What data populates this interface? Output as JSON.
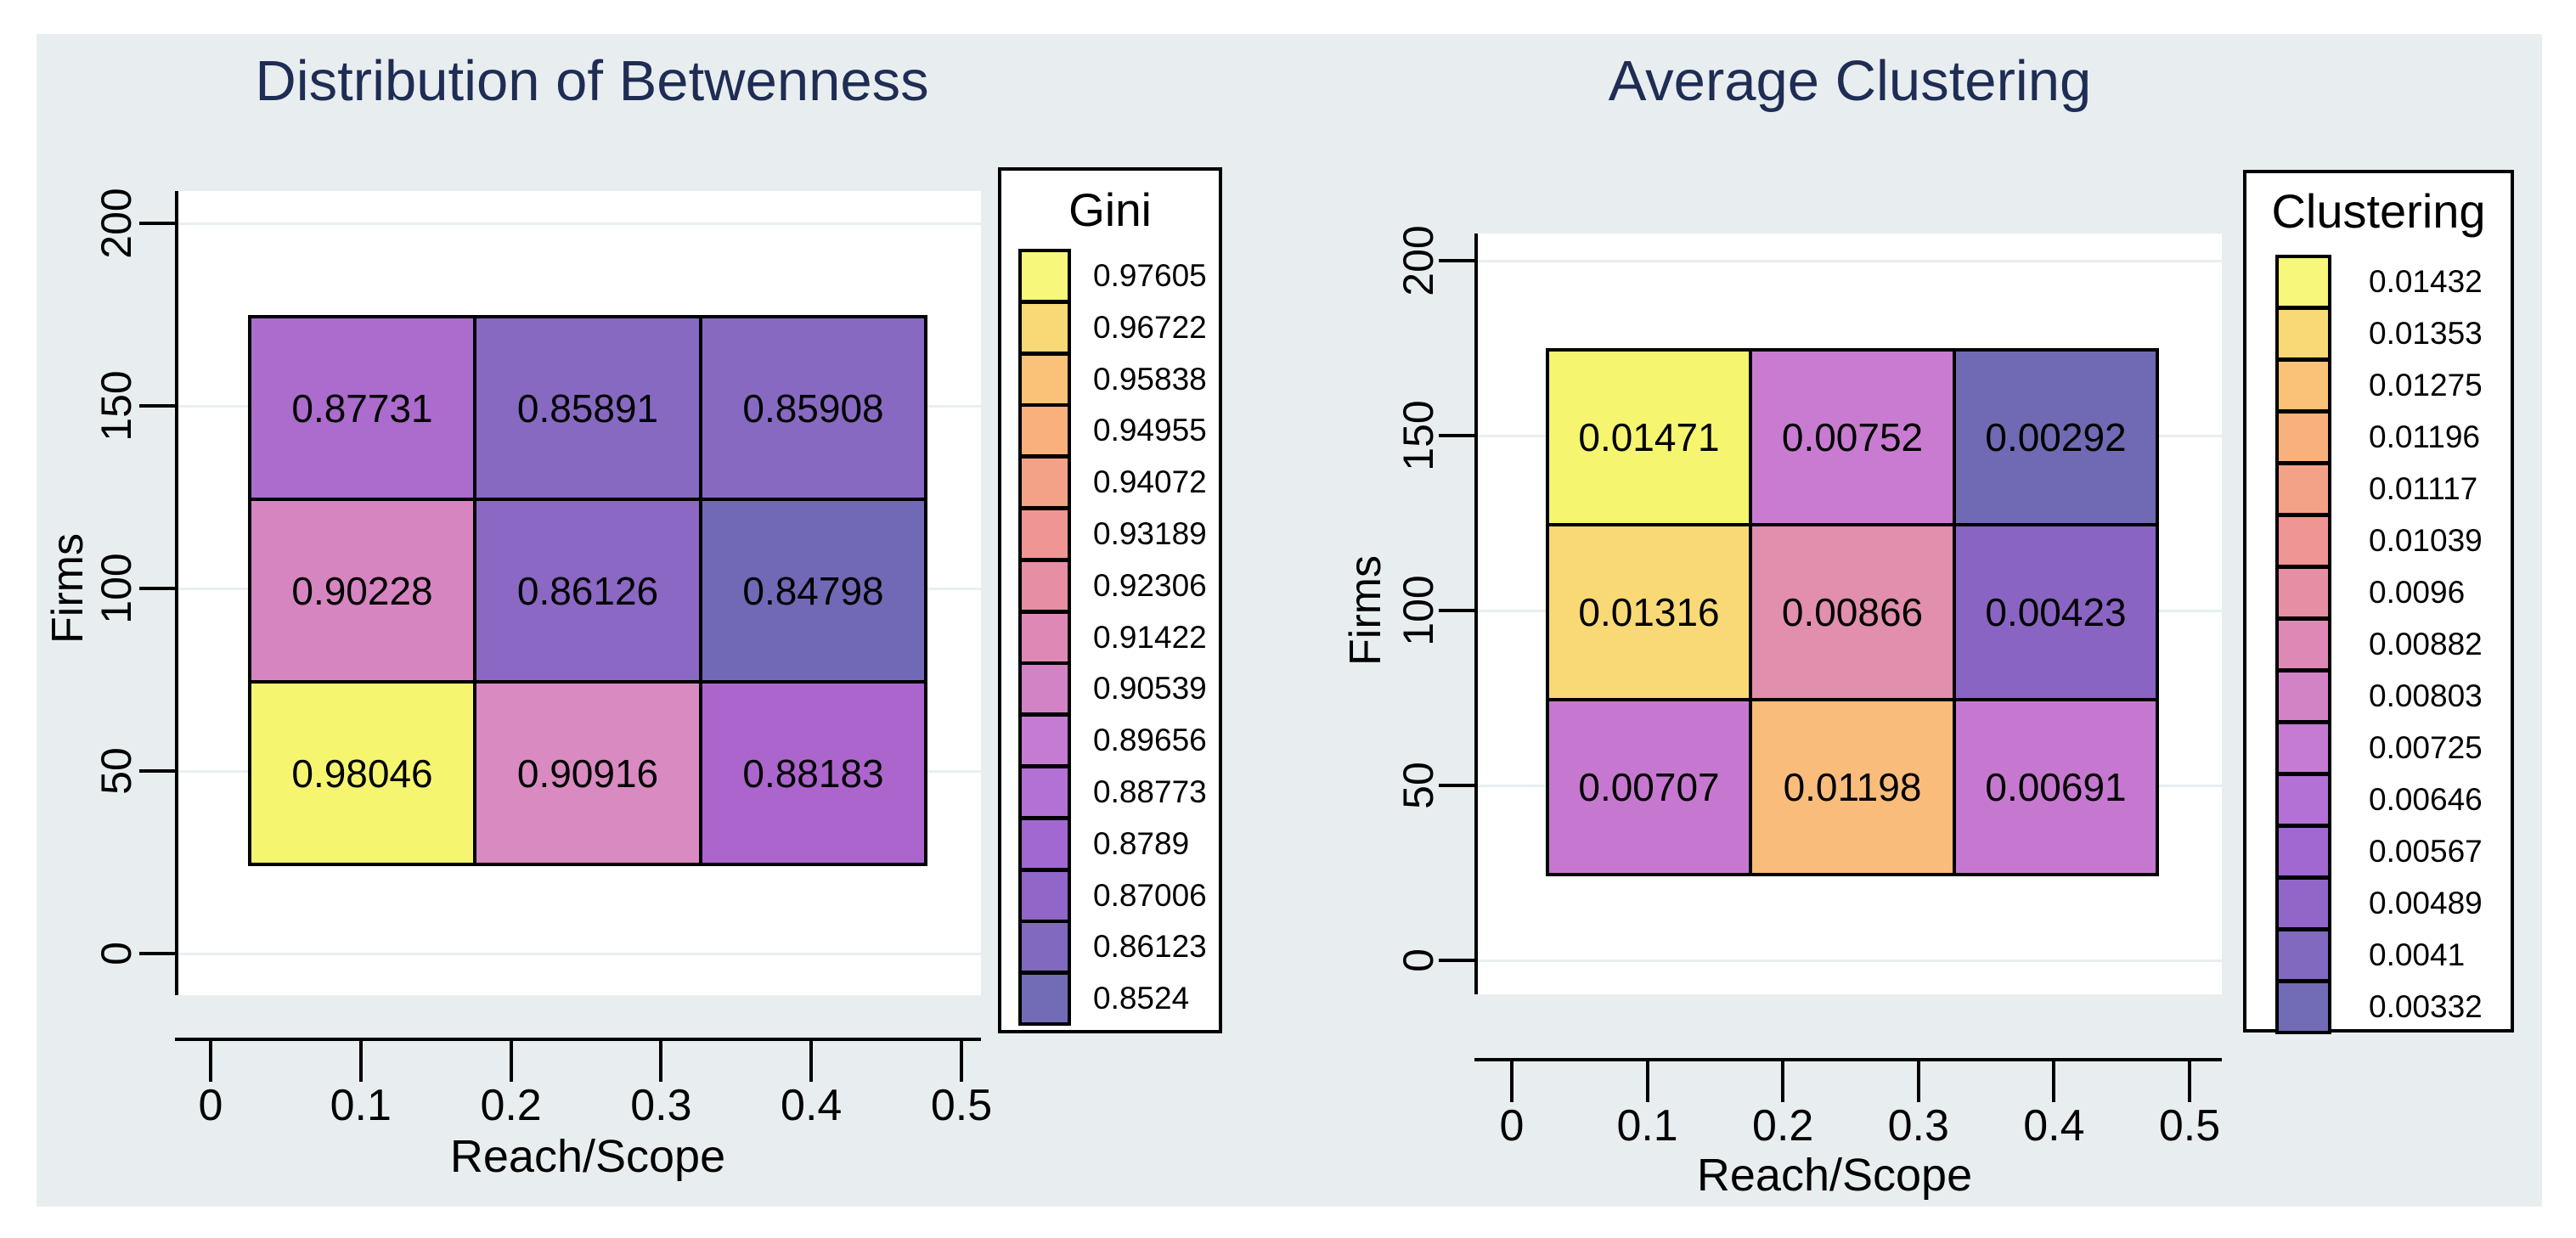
{
  "page": {
    "background": "#ffffff",
    "panel_color": "#e8eef0",
    "title_color": "#1f2d55",
    "grid_color": "#e7eff0",
    "axis_color": "#000000"
  },
  "chart_data": [
    {
      "type": "heatmap",
      "title": "Distribution of Betwenness",
      "xlabel": "Reach/Scope",
      "ylabel": "Firms",
      "x_ticks": [
        0,
        0.1,
        0.2,
        0.3,
        0.4,
        0.5
      ],
      "y_ticks": [
        0,
        50,
        100,
        150,
        200
      ],
      "x_range": [
        0,
        0.5
      ],
      "y_range": [
        0,
        200
      ],
      "x_centers": [
        0.1,
        0.25,
        0.4
      ],
      "cell_x_extent": 0.15,
      "cell_y_extent": 50,
      "grid": true,
      "legend_position": "right",
      "rows": [
        {
          "y": 150,
          "values": [
            0.87731,
            0.85891,
            0.85908
          ],
          "colors": [
            "#ab6ccd",
            "#8769c2",
            "#8869c2"
          ]
        },
        {
          "y": 100,
          "values": [
            0.90228,
            0.86126,
            0.84798
          ],
          "colors": [
            "#d685c1",
            "#8a68c3",
            "#7169b6"
          ]
        },
        {
          "y": 50,
          "values": [
            0.98046,
            0.90916,
            0.88183
          ],
          "colors": [
            "#f5f56f",
            "#d98ac1",
            "#ad65ce"
          ]
        }
      ],
      "legend": {
        "title": "Gini",
        "labels": [
          0.97605,
          0.96722,
          0.95838,
          0.94955,
          0.94072,
          0.93189,
          0.92306,
          0.91422,
          0.90539,
          0.89656,
          0.88773,
          0.8789,
          0.87006,
          0.86123,
          0.8524
        ],
        "colors": [
          "#f6f77b",
          "#f9d876",
          "#fac178",
          "#f8b07c",
          "#f4a287",
          "#ef9594",
          "#e68ea4",
          "#de89b5",
          "#d283c6",
          "#c57bd1",
          "#b370d5",
          "#a268d1",
          "#9066c9",
          "#8069bf",
          "#716cb5"
        ]
      }
    },
    {
      "type": "heatmap",
      "title": "Average Clustering",
      "xlabel": "Reach/Scope",
      "ylabel": "Firms",
      "x_ticks": [
        0,
        0.1,
        0.2,
        0.3,
        0.4,
        0.5
      ],
      "y_ticks": [
        0,
        50,
        100,
        150,
        200
      ],
      "x_range": [
        0,
        0.5
      ],
      "y_range": [
        0,
        200
      ],
      "x_centers": [
        0.1,
        0.25,
        0.4
      ],
      "cell_x_extent": 0.15,
      "cell_y_extent": 50,
      "grid": true,
      "legend_position": "right",
      "rows": [
        {
          "y": 150,
          "values": [
            0.01471,
            0.00752,
            0.00292
          ],
          "colors": [
            "#f5f56f",
            "#c97bd1",
            "#6f6ab3"
          ]
        },
        {
          "y": 100,
          "values": [
            0.01316,
            0.00866,
            0.00423
          ],
          "colors": [
            "#f8d975",
            "#e18fac",
            "#8a64c2"
          ]
        },
        {
          "y": 50,
          "values": [
            0.00707,
            0.01198,
            0.00691
          ],
          "colors": [
            "#c678d0",
            "#f9bc7b",
            "#c678d0"
          ]
        }
      ],
      "legend": {
        "title": "Clustering",
        "labels": [
          0.01432,
          0.01353,
          0.01275,
          0.01196,
          0.01117,
          0.01039,
          0.0096,
          0.00882,
          0.00803,
          0.00725,
          0.00646,
          0.00567,
          0.00489,
          0.0041,
          0.00332
        ],
        "colors": [
          "#f6f77b",
          "#f9d876",
          "#fac178",
          "#f8b07c",
          "#f4a287",
          "#ef9594",
          "#e68ea4",
          "#de89b5",
          "#d283c6",
          "#c57bd1",
          "#b370d5",
          "#a268d1",
          "#9066c9",
          "#8069bf",
          "#716cb5"
        ]
      }
    }
  ]
}
